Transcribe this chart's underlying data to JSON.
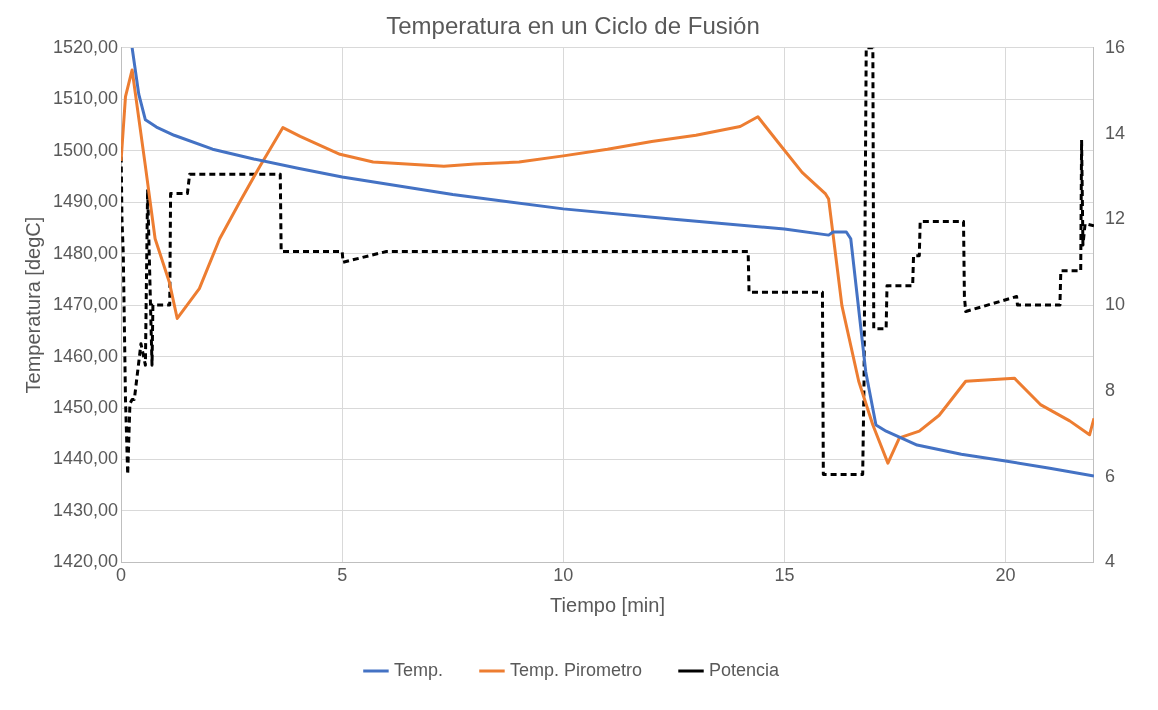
{
  "chart_data": {
    "type": "line",
    "title": "Temperatura en un Ciclo de Fusión",
    "xlabel": "Tiempo [min]",
    "ylabel": "Temperatura [degC]",
    "xlim": [
      0,
      22
    ],
    "xticks": [
      0,
      5,
      10,
      15,
      20
    ],
    "ylim": [
      1420,
      1520
    ],
    "yticks": [
      {
        "value": 1420,
        "label": "1420,00"
      },
      {
        "value": 1430,
        "label": "1430,00"
      },
      {
        "value": 1440,
        "label": "1440,00"
      },
      {
        "value": 1450,
        "label": "1450,00"
      },
      {
        "value": 1460,
        "label": "1460,00"
      },
      {
        "value": 1470,
        "label": "1470,00"
      },
      {
        "value": 1480,
        "label": "1480,00"
      },
      {
        "value": 1490,
        "label": "1490,00"
      },
      {
        "value": 1500,
        "label": "1500,00"
      },
      {
        "value": 1510,
        "label": "1510,00"
      },
      {
        "value": 1520,
        "label": "1520,00"
      }
    ],
    "y2lim": [
      4,
      16
    ],
    "y2ticks": [
      4,
      6,
      8,
      10,
      12,
      14,
      16
    ],
    "grid": true,
    "legend": "bottom",
    "marker": "none",
    "series": [
      {
        "name": "Temp.",
        "color": "#4472c4",
        "line_style": "solid",
        "x": [
          0.25,
          0.4,
          0.55,
          0.8,
          1.2,
          2.07,
          3,
          4,
          5,
          7.5,
          10,
          12.5,
          15,
          16,
          16.1,
          16.4,
          16.5,
          16.84,
          17.07,
          17.3,
          18,
          19,
          20,
          21,
          22
        ],
        "values": [
          1520,
          1511,
          1506,
          1504.6,
          1503,
          1500.3,
          1498.4,
          1496.6,
          1494.9,
          1491.5,
          1488.7,
          1486.7,
          1484.8,
          1483.6,
          1484.2,
          1484.2,
          1482.9,
          1457,
          1446.7,
          1445.5,
          1442.8,
          1441,
          1439.7,
          1438.3,
          1436.8
        ]
      },
      {
        "name": "Temp. Pirometro",
        "color": "#ed7d31",
        "line_style": "solid",
        "x": [
          0,
          0.1,
          0.25,
          0.55,
          0.77,
          1.09,
          1.27,
          1.77,
          2.23,
          2.68,
          3.14,
          3.66,
          4.05,
          4.95,
          5.7,
          7.3,
          8,
          9,
          10,
          11,
          12,
          13,
          14,
          14.4,
          14.86,
          15.4,
          15.93,
          16,
          16.3,
          16.68,
          17,
          17.34,
          17.6,
          18.05,
          18.5,
          19.1,
          20.2,
          20.8,
          21.45,
          21.9,
          22
        ],
        "values": [
          1498,
          1510.5,
          1515.7,
          1497,
          1482.9,
          1474.5,
          1467.4,
          1473.2,
          1482.9,
          1490,
          1497,
          1504.5,
          1502.8,
          1499.3,
          1497.8,
          1497,
          1497.4,
          1497.8,
          1499,
          1500.3,
          1501.8,
          1503,
          1504.7,
          1506.6,
          1501.6,
          1495.8,
          1491.6,
          1490.6,
          1469.9,
          1455.2,
          1446.7,
          1439.3,
          1444.2,
          1445.5,
          1448.6,
          1455.2,
          1455.8,
          1450.6,
          1447.5,
          1444.8,
          1448
        ]
      },
      {
        "name": "Potencia",
        "color": "#000000",
        "line_style": "dashed",
        "axis": "y2",
        "x": [
          0,
          0.02,
          0.05,
          0.1,
          0.15,
          0.2,
          0.25,
          0.3,
          0.45,
          0.55,
          0.6,
          0.7,
          0.72,
          0.75,
          0.8,
          0.85,
          0.9,
          1.1,
          1.12,
          1.25,
          1.5,
          1.55,
          1.6,
          3.6,
          3.62,
          5,
          5.02,
          6,
          6.02,
          14.18,
          14.2,
          15.86,
          15.88,
          16.77,
          16.8,
          16.85,
          17,
          17.02,
          17.3,
          17.32,
          17.9,
          17.92,
          18.05,
          18.07,
          19.05,
          19.07,
          19.1,
          20.25,
          20.27,
          21.23,
          21.25,
          21.5,
          21.7,
          21.72,
          21.75,
          21.8,
          22
        ],
        "values": [
          13.7,
          12,
          11.2,
          7.8,
          6.05,
          7.7,
          7.8,
          7.8,
          9.1,
          8.6,
          12.7,
          8.6,
          10,
          10,
          10,
          10,
          10,
          10,
          12.6,
          12.6,
          12.6,
          13.05,
          13.05,
          13.05,
          11.25,
          11.25,
          11.0,
          11.25,
          11.25,
          11.25,
          10.3,
          10.3,
          6.05,
          6.05,
          8.2,
          16,
          16,
          9.45,
          9.45,
          10.45,
          10.45,
          11.15,
          11.15,
          11.95,
          11.95,
          10.2,
          9.85,
          10.2,
          10,
          10,
          10.8,
          10.8,
          10.8,
          13.85,
          11.4,
          11.9,
          11.85
        ]
      }
    ]
  }
}
